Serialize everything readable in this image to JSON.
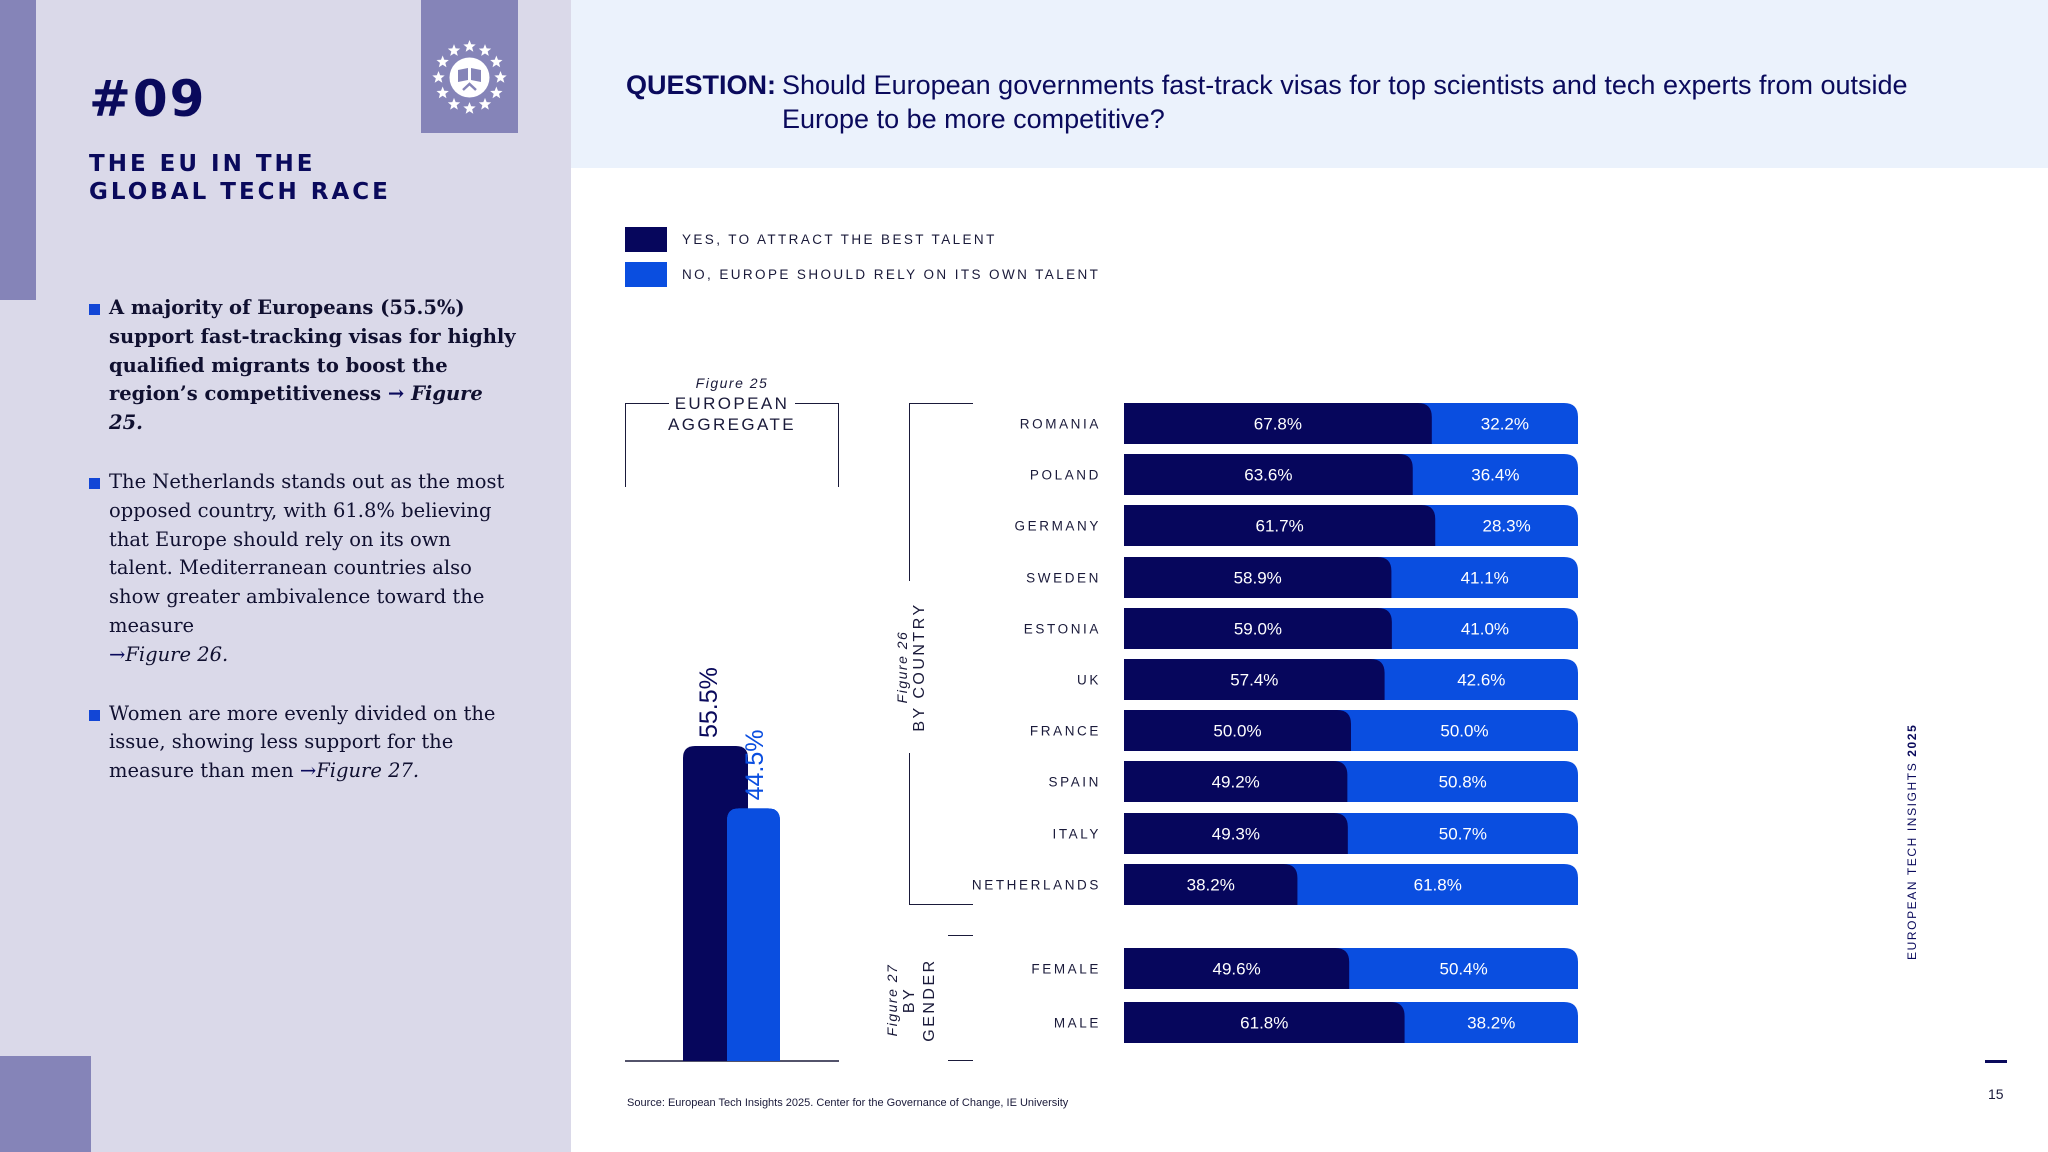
{
  "chapter": {
    "number": "#09",
    "title_line1": "THE EU IN THE",
    "title_line2": "GLOBAL TECH RACE"
  },
  "bullets": [
    {
      "text": "A majority of Europeans (55.5%) support fast-tracking visas for highly qualified migrants to boost the region’s competitiveness ",
      "arrow": "→",
      "ref": "Figure 25."
    },
    {
      "text": "The Netherlands stands out as the most opposed country, with 61.8% believing that Europe should rely on its own talent. Mediterranean countries also show greater ambivalence toward the measure ",
      "arrow": "→",
      "ref": "Figure 26."
    },
    {
      "text": "Women are more evenly divided on the issue, showing less support for the measure than men ",
      "arrow": "→",
      "ref": "Figure 27."
    }
  ],
  "question": {
    "label": "QUESTION:",
    "text": "Should European governments fast-track visas for top scientists and tech experts from outside Europe to be more competitive?"
  },
  "legend": [
    {
      "label": "YES, TO ATTRACT THE BEST TALENT",
      "color": "#06065c"
    },
    {
      "label": "NO, EUROPE SHOULD RELY ON ITS OWN TALENT",
      "color": "#0a4ee0"
    }
  ],
  "groups": {
    "aggregate": {
      "fig": "Figure 25",
      "line1": "EUROPEAN",
      "line2": "AGGREGATE"
    },
    "country": {
      "fig": "Figure 26",
      "name": "BY COUNTRY"
    },
    "gender": {
      "fig": "Figure 27",
      "line1": "BY",
      "line2": "GENDER"
    }
  },
  "chart_data": [
    {
      "type": "bar",
      "title": "European aggregate",
      "categories": [
        "Yes",
        "No"
      ],
      "values": [
        55.5,
        44.5
      ],
      "labels": [
        "55.5%",
        "44.5%"
      ],
      "ylim": [
        0,
        100
      ]
    },
    {
      "type": "bar",
      "orientation": "horizontal",
      "stacked": true,
      "title": "By country",
      "categories": [
        "ROMANIA",
        "POLAND",
        "GERMANY",
        "SWEDEN",
        "ESTONIA",
        "UK",
        "FRANCE",
        "SPAIN",
        "ITALY",
        "NETHERLANDS"
      ],
      "series": [
        {
          "name": "YES, TO ATTRACT THE BEST TALENT",
          "values": [
            67.8,
            63.6,
            61.7,
            58.9,
            59.0,
            57.4,
            50.0,
            49.2,
            49.3,
            38.2
          ],
          "labels": [
            "67.8%",
            "63.6%",
            "61.7%",
            "58.9%",
            "59.0%",
            "57.4%",
            "50.0%",
            "49.2%",
            "49.3%",
            "38.2%"
          ]
        },
        {
          "name": "NO, EUROPE SHOULD RELY ON ITS OWN TALENT",
          "values": [
            32.2,
            36.4,
            28.3,
            41.1,
            41.0,
            42.6,
            50.0,
            50.8,
            50.7,
            61.8
          ],
          "labels": [
            "32.2%",
            "36.4%",
            "28.3%",
            "41.1%",
            "41.0%",
            "42.6%",
            "50.0%",
            "50.8%",
            "50.7%",
            "61.8%"
          ]
        }
      ]
    },
    {
      "type": "bar",
      "orientation": "horizontal",
      "stacked": true,
      "title": "By gender",
      "categories": [
        "FEMALE",
        "MALE"
      ],
      "series": [
        {
          "name": "YES, TO ATTRACT THE BEST TALENT",
          "values": [
            49.6,
            61.8
          ],
          "labels": [
            "49.6%",
            "61.8%"
          ]
        },
        {
          "name": "NO, EUROPE SHOULD RELY ON ITS OWN TALENT",
          "values": [
            50.4,
            38.2
          ],
          "labels": [
            "50.4%",
            "38.2%"
          ]
        }
      ]
    }
  ],
  "colors": {
    "yes": "#06065c",
    "no": "#0a4ee0",
    "accent": "#8584b8",
    "panel": "#dad9e9"
  },
  "source": "Source: European Tech Insights 2025. Center for the Governance of Change, IE University",
  "footer": {
    "side_title": "EUROPEAN TECH INSIGHTS",
    "side_year": "2025",
    "page": "15"
  }
}
